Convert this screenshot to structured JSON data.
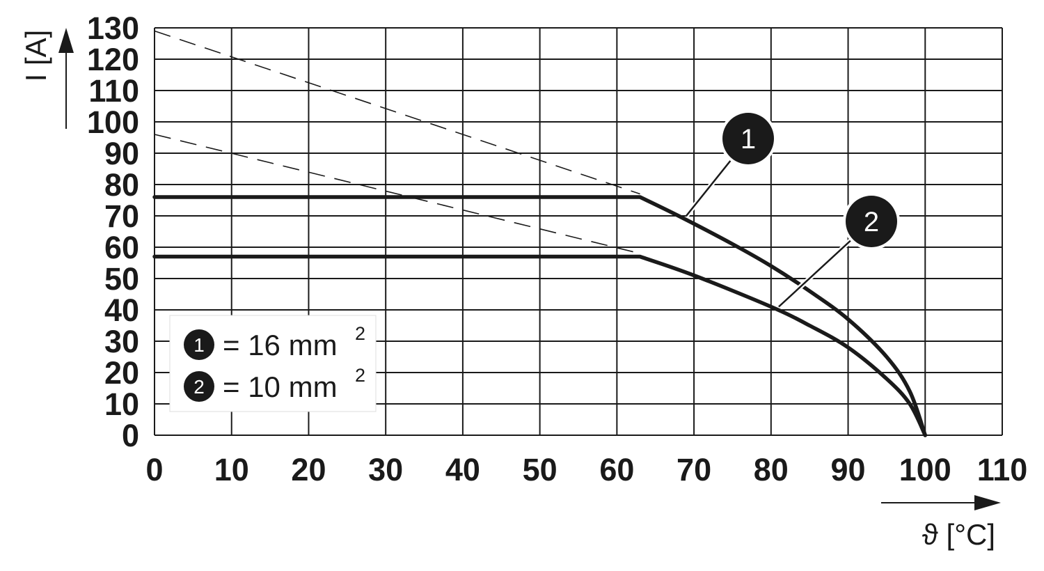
{
  "chart_data": {
    "type": "line",
    "xlabel": "ϑ [°C]",
    "ylabel": "I [A]",
    "xlim": [
      0,
      110
    ],
    "ylim": [
      0,
      130
    ],
    "x_ticks": [
      "0",
      "10",
      "20",
      "30",
      "40",
      "50",
      "60",
      "70",
      "80",
      "90",
      "100",
      "110"
    ],
    "y_ticks": [
      "0",
      "10",
      "20",
      "30",
      "40",
      "50",
      "60",
      "70",
      "80",
      "90",
      "100",
      "110",
      "120",
      "130"
    ],
    "grid": true,
    "series": [
      {
        "name": "1",
        "legend_text": "= 16 mm",
        "legend_sup": "2",
        "x": [
          0,
          63,
          68,
          75,
          80,
          85,
          90,
          95,
          98,
          100
        ],
        "y": [
          76,
          76,
          70,
          61,
          54,
          46,
          37,
          25,
          14,
          0
        ],
        "dashed_extension": {
          "x": [
            0,
            63
          ],
          "y": [
            129,
            77
          ]
        }
      },
      {
        "name": "2",
        "legend_text": "= 10 mm",
        "legend_sup": "2",
        "x": [
          0,
          63,
          70,
          80,
          85,
          90,
          95,
          98,
          100
        ],
        "y": [
          57,
          57,
          51,
          41,
          35,
          28,
          18,
          10,
          0
        ],
        "dashed_extension": {
          "x": [
            0,
            63
          ],
          "y": [
            96,
            58
          ]
        }
      }
    ],
    "legend_position": "bottom-left"
  }
}
